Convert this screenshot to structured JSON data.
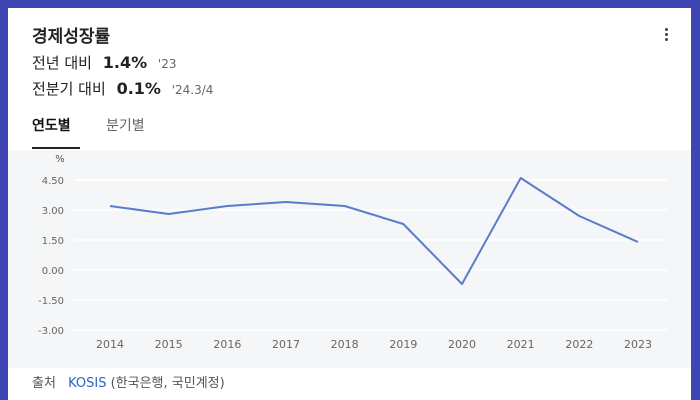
{
  "widget": {
    "title": "경제성장률",
    "stats": [
      {
        "label": "전년 대비",
        "value": "1.4%",
        "period": "'23"
      },
      {
        "label": "전분기 대비",
        "value": "0.1%",
        "period": "'24.3/4"
      }
    ],
    "tabs": [
      {
        "label": "연도별",
        "active": true
      },
      {
        "label": "분기별",
        "active": false
      }
    ],
    "source": {
      "prefix": "출처",
      "link": "KOSIS",
      "detail": "(한국은행, 국민계정)"
    }
  },
  "colors": {
    "line": "#5b7bcc",
    "accent_text": "#2e61c9",
    "frame": "#3f45b4"
  },
  "chart_data": {
    "type": "line",
    "ylabel": "%",
    "x": [
      "2014",
      "2015",
      "2016",
      "2017",
      "2018",
      "2019",
      "2020",
      "2021",
      "2022",
      "2023"
    ],
    "series": [
      {
        "values": [
          3.2,
          2.8,
          3.2,
          3.4,
          3.2,
          2.3,
          -0.7,
          4.6,
          2.7,
          1.4
        ]
      }
    ],
    "yticks": [
      "4.50",
      "3.00",
      "1.50",
      "0.00",
      "-1.50",
      "-3.00"
    ],
    "ylim": [
      -3.0,
      4.5
    ],
    "grid": true
  }
}
